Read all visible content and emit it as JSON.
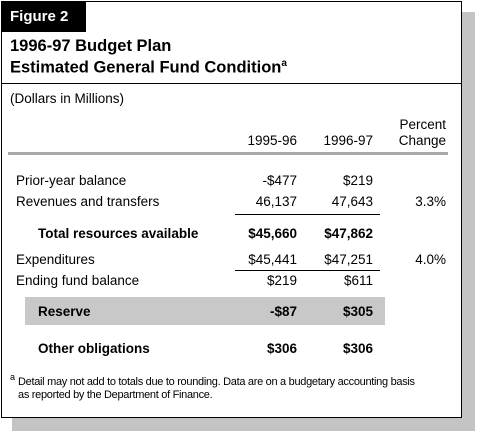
{
  "header": {
    "figure_label": "Figure 2",
    "title_line1": "1996-97 Budget Plan",
    "title_line2": "Estimated General Fund Condition",
    "title_marker": "a"
  },
  "units": "(Dollars in Millions)",
  "table": {
    "columns": [
      "1995-96",
      "1996-97",
      "Percent",
      "Change"
    ],
    "rows": [
      {
        "label": "Prior-year balance",
        "values": [
          "-$477",
          "$219"
        ]
      },
      {
        "label": "Revenues and transfers",
        "values": [
          "46,137",
          "47,643"
        ],
        "change": "3.3%"
      },
      {
        "label": "Total resources available",
        "values": [
          "$45,660",
          "$47,862"
        ]
      },
      {
        "label": "Expenditures",
        "values": [
          "$45,441",
          "$47,251"
        ],
        "change": "4.0%"
      },
      {
        "label": "Ending fund balance",
        "values": [
          "$219",
          "$611"
        ]
      },
      {
        "label": "Reserve",
        "values": [
          "-$87",
          "$305"
        ]
      },
      {
        "label": "Other obligations",
        "values": [
          "$306",
          "$306"
        ]
      }
    ]
  },
  "footnote": {
    "marker": "a",
    "text": "Detail may not add to totals due to rounding. Data are on a budgetary accounting basis as reported by the Department of Finance."
  }
}
